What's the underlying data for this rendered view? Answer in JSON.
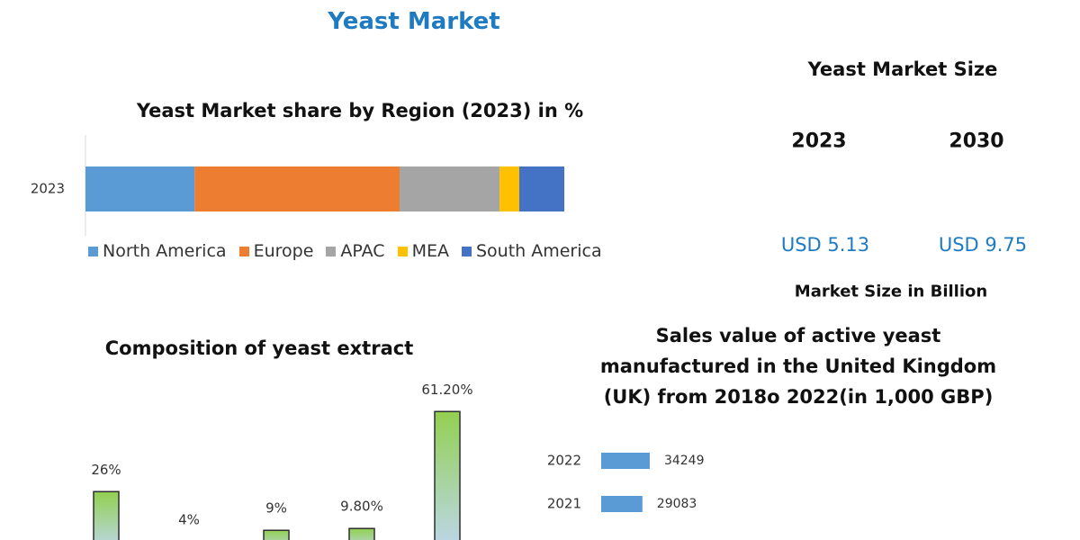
{
  "title": "Yeast Market",
  "market_size": {
    "title": "Yeast Market Size",
    "years": [
      "2023",
      "2030"
    ],
    "values": [
      "USD 5.13",
      "USD 9.75"
    ],
    "caption": "Market Size in Billion"
  },
  "chart_data": [
    {
      "type": "bar",
      "orientation": "horizontal",
      "stacked": true,
      "title": "Yeast Market share by Region (2023) in %",
      "categories": [
        "2023"
      ],
      "xlim": [
        0,
        100
      ],
      "legend": "bottom",
      "series": [
        {
          "name": "North America",
          "color": "#5b9bd5",
          "values": [
            22.8
          ]
        },
        {
          "name": "Europe",
          "color": "#ed7d31",
          "values": [
            42.8
          ]
        },
        {
          "name": "APAC",
          "color": "#a5a5a5",
          "values": [
            20.9
          ]
        },
        {
          "name": "MEA",
          "color": "#ffc000",
          "values": [
            4.1
          ]
        },
        {
          "name": "South America",
          "color": "#4472c4",
          "values": [
            9.4
          ]
        }
      ]
    },
    {
      "type": "bar",
      "orientation": "vertical",
      "title": "Composition of yeast extract",
      "categories": [
        null,
        null,
        null,
        null,
        null
      ],
      "values": [
        26,
        4,
        9,
        9.8,
        61.2
      ],
      "value_labels": [
        "26%",
        "4%",
        "9%",
        "9.80%",
        "61.20%"
      ],
      "color": "#92d050",
      "ylim": [
        0,
        70
      ]
    },
    {
      "type": "bar",
      "orientation": "horizontal",
      "title": "Sales value of active yeast manufactured in the United Kingdom (UK) from 2018o 2022(in 1,000 GBP)",
      "categories": [
        "2022",
        "2021"
      ],
      "values": [
        34249,
        29083
      ],
      "color": "#5b9bd5",
      "xlim": [
        0,
        40000
      ]
    }
  ]
}
